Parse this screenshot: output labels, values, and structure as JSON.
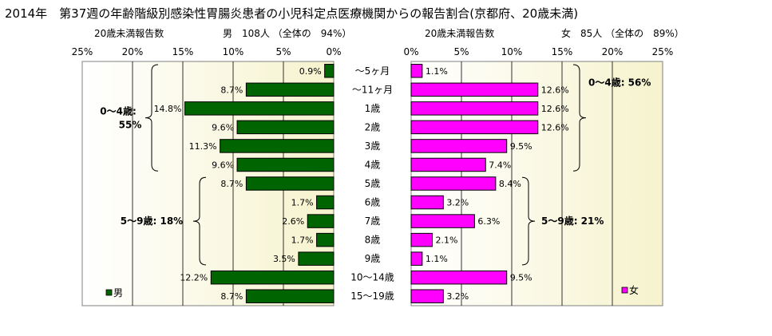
{
  "chart_data": {
    "type": "bar",
    "title": "2014年　第37週の年齢階級別感染性胃腸炎患者の小児科定点医療機関からの報告割合(京都府、20歳未満)",
    "categories": [
      "～5ヶ月",
      "～11ヶ月",
      "1歳",
      "2歳",
      "3歳",
      "4歳",
      "5歳",
      "6歳",
      "7歳",
      "8歳",
      "9歳",
      "10～14歳",
      "15～19歳"
    ],
    "series": [
      {
        "name": "男",
        "color": "#006400",
        "values": [
          0.9,
          8.7,
          14.8,
          9.6,
          11.3,
          9.6,
          8.7,
          1.7,
          2.6,
          1.7,
          3.5,
          12.2,
          8.7
        ],
        "value_labels": [
          "0.9%",
          "8.7%",
          "14.8%",
          "9.6%",
          "11.3%",
          "9.6%",
          "8.7%",
          "1.7%",
          "2.6%",
          "1.7%",
          "3.5%",
          "12.2%",
          "8.7%"
        ],
        "panel_header_left": "20歳未満報告数",
        "panel_header_right": "男　108人 （全体の　94%）",
        "ticks": [
          "25%",
          "20%",
          "15%",
          "10%",
          "5%",
          "0%"
        ],
        "xlim": [
          0,
          25
        ],
        "direction": "right-to-left",
        "groups": [
          {
            "label_lines": [
              "0～4歳:",
              "55%"
            ],
            "from": 0,
            "to": 5
          },
          {
            "label_lines": [
              "5～9歳: 18%"
            ],
            "from": 6,
            "to": 10
          }
        ]
      },
      {
        "name": "女",
        "color": "#ff00ff",
        "values": [
          1.1,
          12.6,
          12.6,
          12.6,
          9.5,
          7.4,
          8.4,
          3.2,
          6.3,
          2.1,
          1.1,
          9.5,
          3.2
        ],
        "value_labels": [
          "1.1%",
          "12.6%",
          "12.6%",
          "12.6%",
          "9.5%",
          "7.4%",
          "8.4%",
          "3.2%",
          "6.3%",
          "2.1%",
          "1.1%",
          "9.5%",
          "3.2%"
        ],
        "panel_header_left": "20歳未満報告数",
        "panel_header_right": "女　85人 （全体の　89%）",
        "ticks": [
          "0%",
          "5%",
          "10%",
          "15%",
          "20%",
          "25%"
        ],
        "xlim": [
          0,
          25
        ],
        "direction": "left-to-right",
        "groups": [
          {
            "label_lines": [
              "0～4歳: 56%"
            ],
            "from": 0,
            "to": 5
          },
          {
            "label_lines": [
              "5～9歳: 21%"
            ],
            "from": 6,
            "to": 10
          }
        ]
      }
    ],
    "grid": true,
    "legend": [
      "男",
      "女"
    ]
  }
}
